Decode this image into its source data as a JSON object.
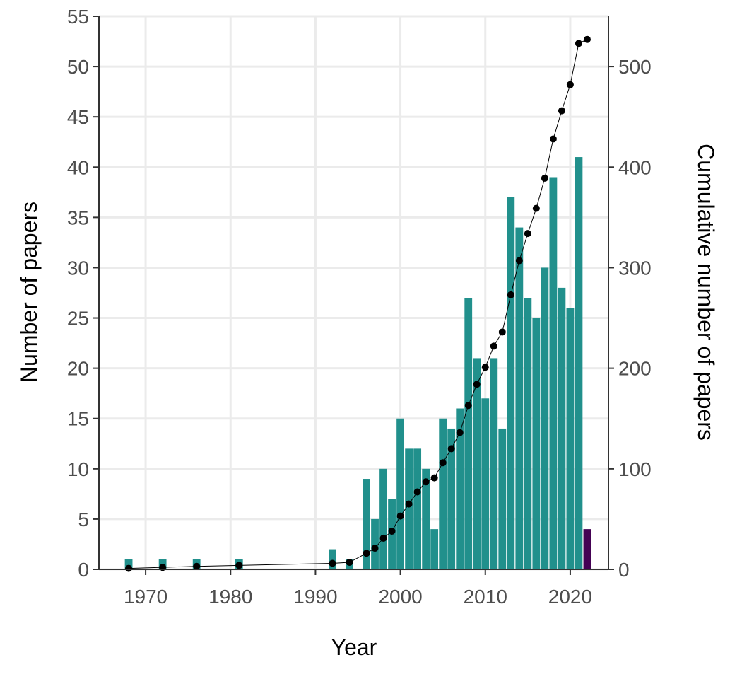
{
  "chart_data": {
    "type": "bar",
    "xlabel": "Year",
    "ylabel": "Number of papers",
    "y2label": "Cumulative number of papers",
    "xlim": [
      1964.5,
      2024.5
    ],
    "ylim": [
      0,
      55
    ],
    "y2lim": [
      0,
      550
    ],
    "xticks": [
      1970,
      1980,
      1990,
      2000,
      2010,
      2020
    ],
    "yticks": [
      0,
      5,
      10,
      15,
      20,
      25,
      30,
      35,
      40,
      45,
      50,
      55
    ],
    "y2ticks": [
      0,
      100,
      200,
      300,
      400,
      500
    ],
    "grid": true,
    "colors": {
      "bar": "#21908c",
      "bar_partial_year": "#440154",
      "line": "#000000",
      "grid": "#ebebeb",
      "axis": "#333333"
    },
    "series": [
      {
        "name": "Number of papers",
        "type": "bar",
        "x": [
          1968,
          1972,
          1976,
          1981,
          1992,
          1994,
          1996,
          1997,
          1998,
          1999,
          2000,
          2001,
          2002,
          2003,
          2004,
          2005,
          2006,
          2007,
          2008,
          2009,
          2010,
          2011,
          2012,
          2013,
          2014,
          2015,
          2016,
          2017,
          2018,
          2019,
          2020,
          2021,
          2022
        ],
        "values": [
          1,
          1,
          1,
          1,
          2,
          1,
          9,
          5,
          10,
          7,
          15,
          12,
          12,
          10,
          4,
          15,
          14,
          16,
          27,
          21,
          17,
          21,
          14,
          37,
          34,
          27,
          25,
          30,
          39,
          28,
          26,
          41,
          4
        ]
      },
      {
        "name": "Cumulative number of papers",
        "type": "line",
        "axis": "right",
        "x": [
          1968,
          1972,
          1976,
          1981,
          1992,
          1994,
          1996,
          1997,
          1998,
          1999,
          2000,
          2001,
          2002,
          2003,
          2004,
          2005,
          2006,
          2007,
          2008,
          2009,
          2010,
          2011,
          2012,
          2013,
          2014,
          2015,
          2016,
          2017,
          2018,
          2019,
          2020,
          2021,
          2022
        ],
        "values": [
          1,
          2,
          3,
          4,
          6,
          7,
          16,
          21,
          31,
          38,
          53,
          65,
          77,
          87,
          91,
          106,
          120,
          136,
          163,
          184,
          201,
          222,
          236,
          273,
          307,
          334,
          359,
          389,
          428,
          456,
          482,
          523,
          527
        ]
      }
    ]
  }
}
